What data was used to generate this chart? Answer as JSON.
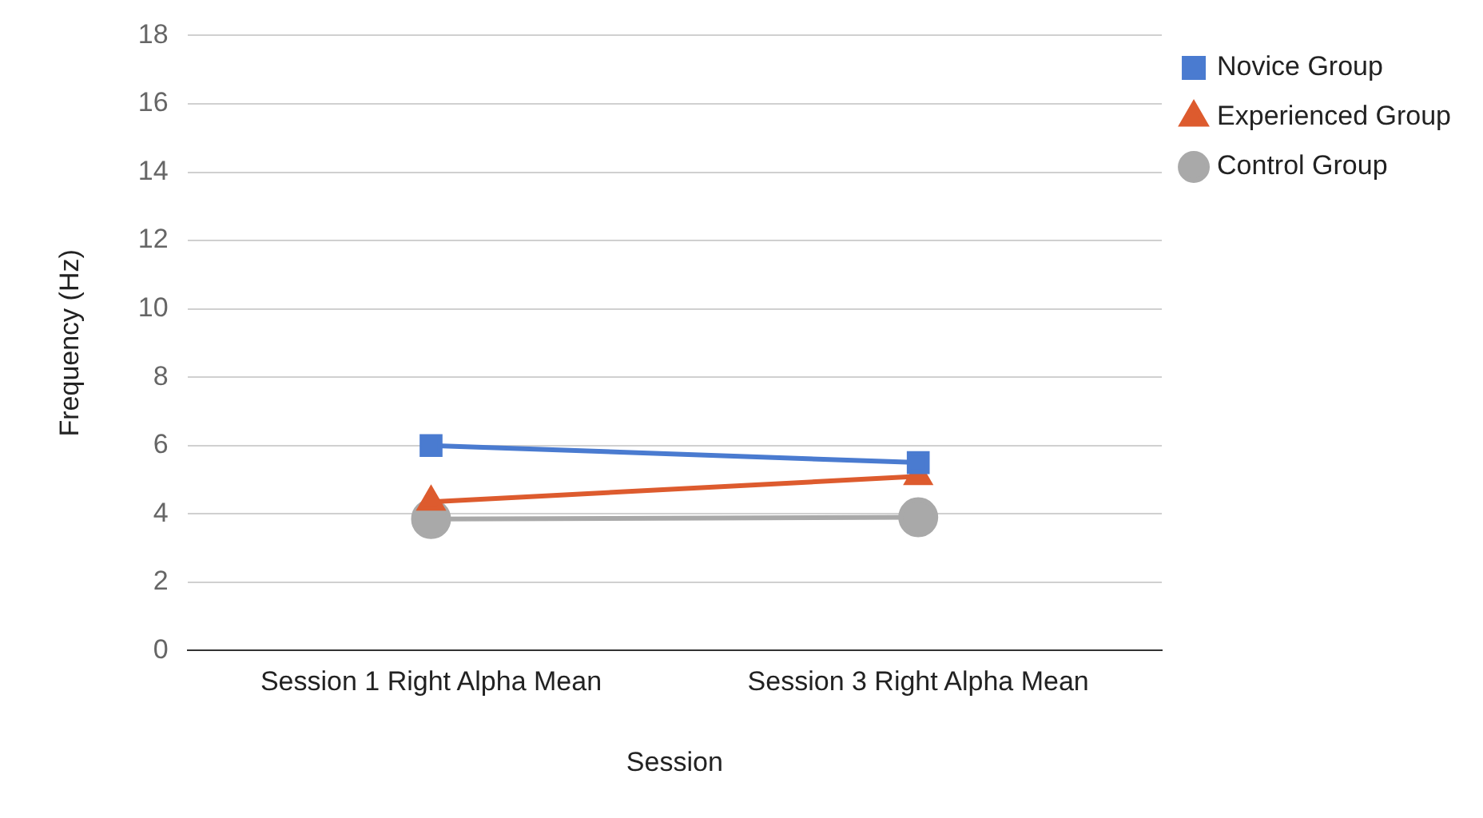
{
  "chart_data": {
    "type": "line",
    "xlabel": "Session",
    "ylabel": "Frequency (Hz)",
    "categories": [
      "Session 1 Right Alpha Mean",
      "Session 3 Right Alpha Mean"
    ],
    "series": [
      {
        "name": "Novice Group",
        "color": "#4a7bd0",
        "marker": "square",
        "values": [
          6.0,
          5.5
        ]
      },
      {
        "name": "Experienced Group",
        "color": "#dd5b2e",
        "marker": "triangle",
        "values": [
          4.35,
          5.1
        ]
      },
      {
        "name": "Control Group",
        "color": "#a9a9a9",
        "marker": "circle",
        "values": [
          3.85,
          3.9
        ]
      }
    ],
    "ylim": [
      0,
      18
    ],
    "yticks": [
      0,
      2,
      4,
      6,
      8,
      10,
      12,
      14,
      16,
      18
    ],
    "grid": "y",
    "legend": "top right",
    "line_style": "solid"
  }
}
